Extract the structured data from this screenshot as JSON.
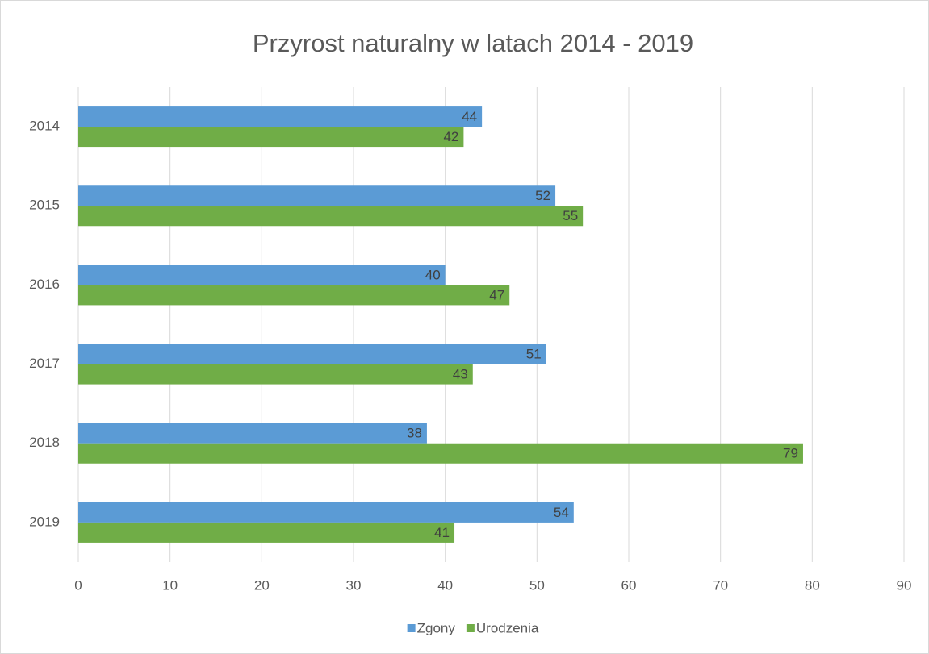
{
  "chart_data": {
    "type": "bar",
    "orientation": "horizontal",
    "title": "Przyrost naturalny w latach 2014 - 2019",
    "categories": [
      "2014",
      "2015",
      "2016",
      "2017",
      "2018",
      "2019"
    ],
    "series": [
      {
        "name": "Zgony",
        "color": "#5b9bd5",
        "values": [
          44,
          52,
          40,
          51,
          38,
          54
        ]
      },
      {
        "name": "Urodzenia",
        "color": "#70ad47",
        "values": [
          42,
          55,
          47,
          43,
          79,
          41
        ]
      }
    ],
    "xlim": [
      0,
      90
    ],
    "xticks": [
      0,
      10,
      20,
      30,
      40,
      50,
      60,
      70,
      80,
      90
    ],
    "grid": true,
    "legend": "bottom",
    "data_labels": true
  }
}
